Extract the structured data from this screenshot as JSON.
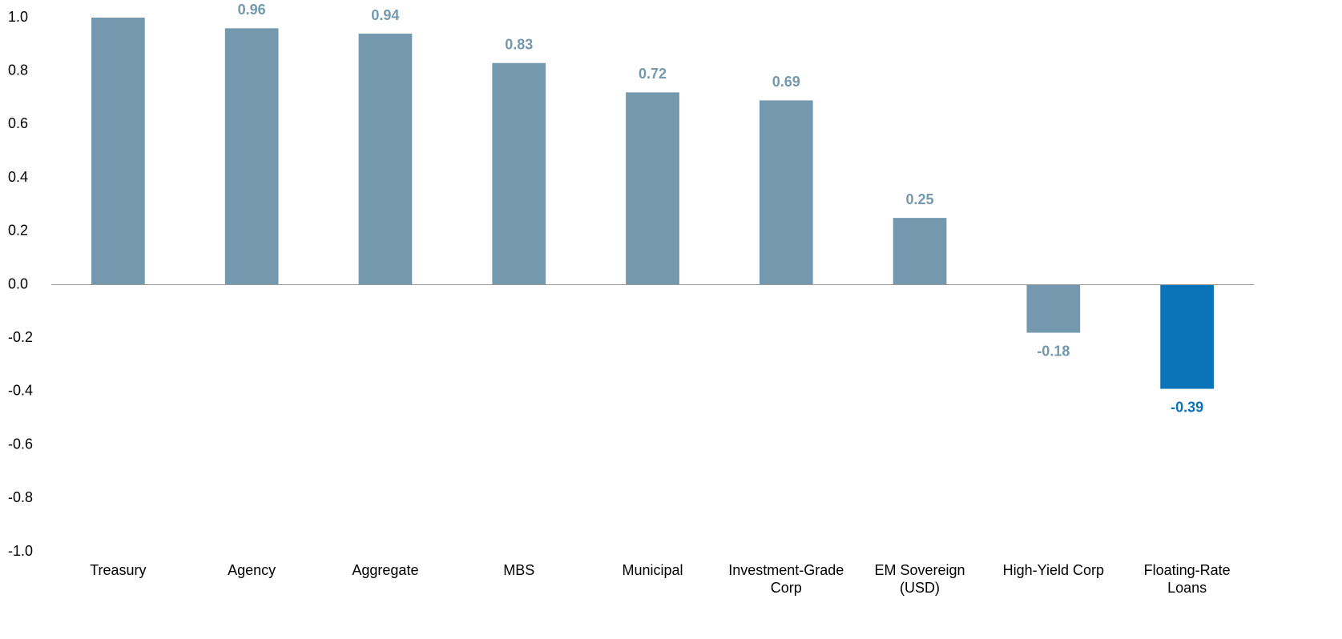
{
  "chart_data": {
    "type": "bar",
    "categories": [
      "Treasury",
      "Agency",
      "Aggregate",
      "MBS",
      "Municipal",
      "Investment-Grade Corp",
      "EM Sovereign (USD)",
      "High-Yield Corp",
      "Floating-Rate Loans"
    ],
    "values": [
      1.0,
      0.96,
      0.94,
      0.83,
      0.72,
      0.69,
      0.25,
      -0.18,
      -0.39
    ],
    "value_labels": [
      null,
      "0.96",
      "0.94",
      "0.83",
      "0.72",
      "0.69",
      "0.25",
      "-0.18",
      "-0.39"
    ],
    "colors": [
      "#7499ae",
      "#7499ae",
      "#7499ae",
      "#7499ae",
      "#7499ae",
      "#7499ae",
      "#7499ae",
      "#7499ae",
      "#0b73b8"
    ],
    "ylim": [
      -1.0,
      1.0
    ],
    "yticks": [
      {
        "value": -1,
        "label": "-1.0"
      },
      {
        "value": -0.8,
        "label": "-0.8"
      },
      {
        "value": -0.6,
        "label": "-0.6"
      },
      {
        "value": -0.4,
        "label": "-0.4"
      },
      {
        "value": -0.2,
        "label": "-0.2"
      },
      {
        "value": 0,
        "label": "0.0"
      },
      {
        "value": 0.2,
        "label": "0.2"
      },
      {
        "value": 0.4,
        "label": "0.4"
      },
      {
        "value": 0.6,
        "label": "0.6"
      },
      {
        "value": 0.8,
        "label": "0.8"
      },
      {
        "value": 1,
        "label": "1.0"
      }
    ],
    "grid": false
  }
}
